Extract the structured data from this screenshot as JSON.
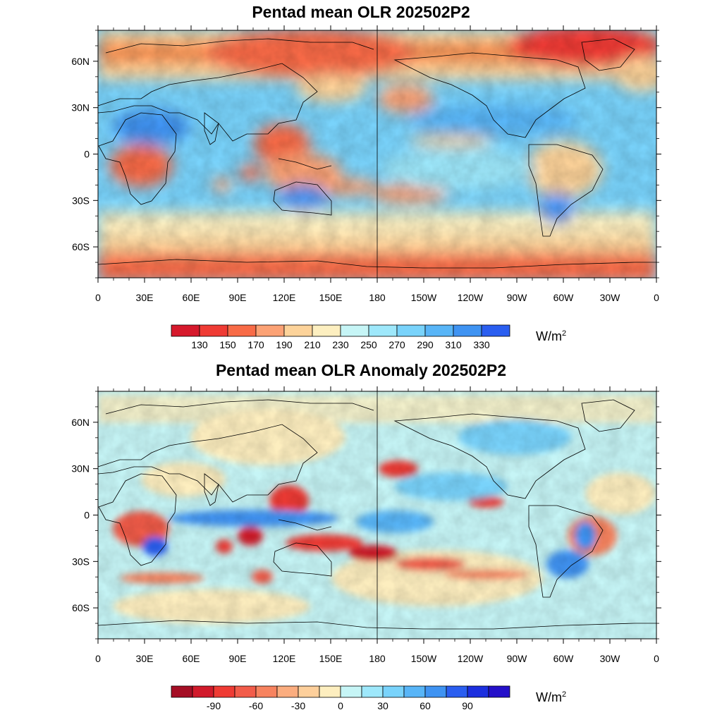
{
  "panels": [
    {
      "title": "Pentad mean OLR 202502P2",
      "units": "W/m",
      "units_sup": "2",
      "colorbar": {
        "colors": [
          "#d6192c",
          "#ef3b34",
          "#f86b47",
          "#fca275",
          "#fdd39a",
          "#fdefc0",
          "#c6f5f6",
          "#9ee8fb",
          "#79d3fb",
          "#58b5f7",
          "#3f93f2",
          "#2a5ef0"
        ],
        "labels": [
          "130",
          "150",
          "170",
          "190",
          "210",
          "230",
          "250",
          "270",
          "290",
          "310",
          "330"
        ]
      }
    },
    {
      "title": "Pentad mean OLR Anomaly 202502P2",
      "units": "W/m",
      "units_sup": "2",
      "colorbar": {
        "colors": [
          "#a50e25",
          "#d11a2b",
          "#ef3b34",
          "#f25c4a",
          "#f7835f",
          "#fbad7f",
          "#fdcf9b",
          "#fdeebf",
          "#c6f5f6",
          "#9ee8fb",
          "#79d3fb",
          "#58b5f7",
          "#3f93f2",
          "#2a5ef0",
          "#1c2fdf",
          "#2410c9"
        ],
        "labels": [
          "-90",
          "-60",
          "-30",
          "0",
          "30",
          "60",
          "90"
        ]
      }
    }
  ],
  "axes": {
    "lat_ticks": [
      "60N",
      "30N",
      "0",
      "30S",
      "60S"
    ],
    "lon_ticks": [
      "0",
      "30E",
      "60E",
      "90E",
      "120E",
      "150E",
      "180",
      "150W",
      "120W",
      "90W",
      "60W",
      "30W",
      "0"
    ]
  },
  "map": {
    "projection": "cylindrical-equidistant",
    "lon_range": [
      0,
      360
    ],
    "lat_range": [
      -80,
      80
    ],
    "central_meridian_line": "180"
  }
}
